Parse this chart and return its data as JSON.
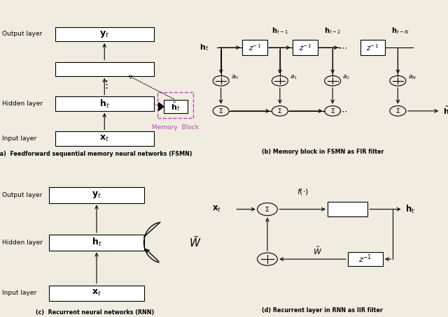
{
  "bg_color": "#f0ece0",
  "panel_a_label": "(a)  Feedforward sequential memory neural networks (FSMN)",
  "panel_b_label": "(b) Memory block in FSMN as FIR filter",
  "panel_c_label": "(c)  Recurrent neural networks (RNN)",
  "panel_d_label": "(d) Recurrent layer in RNN as IIR filter",
  "memory_block_label": "Memory  Block"
}
